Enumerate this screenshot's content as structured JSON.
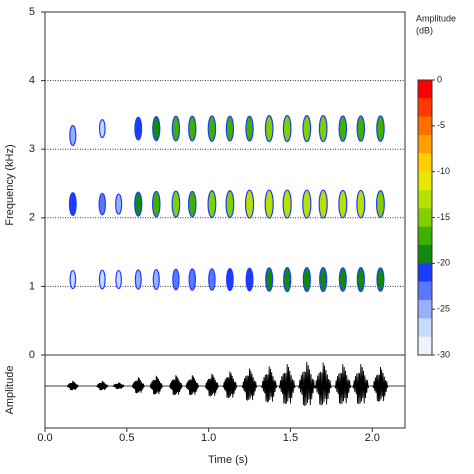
{
  "chart_data": [
    {
      "type": "spectrogram",
      "ylabel": "Frequency (kHz)",
      "xlabel": "Time (s)",
      "xlim": [
        0,
        2.2
      ],
      "xticks": [
        {
          "value": 0,
          "label": "0.0"
        },
        {
          "value": 0.5,
          "label": "0.5"
        },
        {
          "value": 1,
          "label": "1.0"
        },
        {
          "value": 1.5,
          "label": "1.5"
        },
        {
          "value": 2,
          "label": "2.0"
        }
      ],
      "ylim": [
        0,
        5
      ],
      "yticks": [
        1,
        2,
        3,
        4,
        5
      ],
      "grid": true,
      "x": [
        0.17,
        0.35,
        0.45,
        0.57,
        0.68,
        0.8,
        0.9,
        1.02,
        1.13,
        1.25,
        1.37,
        1.48,
        1.6,
        1.7,
        1.82,
        1.93,
        2.05
      ],
      "series": [
        {
          "values": [
            1.1,
            1.1,
            1.1,
            1.1,
            1.1,
            1.1,
            1.1,
            1.1,
            1.1,
            1.1,
            1.1,
            1.1,
            1.1,
            1.1,
            1.1,
            1.1,
            1.1
          ],
          "levels": [
            -27,
            -26,
            -27,
            -25,
            -24,
            -23,
            -22,
            -22,
            -21,
            -20,
            -19,
            -18,
            -18,
            -18,
            -19,
            -18,
            -19
          ]
        },
        {
          "values": [
            2.2,
            2.2,
            2.2,
            2.2,
            2.2,
            2.2,
            2.2,
            2.2,
            2.2,
            2.2,
            2.2,
            2.2,
            2.2,
            2.2,
            2.2,
            2.2,
            2.2
          ],
          "levels": [
            -20,
            -22,
            -24,
            -18,
            -16,
            -15,
            -16,
            -14,
            -14,
            -12,
            -12,
            -12,
            -12,
            -12,
            -13,
            -13,
            -14
          ]
        },
        {
          "values": [
            3.2,
            3.3,
            null,
            3.3,
            3.3,
            3.3,
            3.3,
            3.3,
            3.3,
            3.3,
            3.3,
            3.3,
            3.3,
            3.3,
            3.3,
            3.3,
            3.3
          ],
          "levels": [
            -24,
            -27,
            null,
            -20,
            -18,
            -17,
            -17,
            -16,
            -17,
            -17,
            -15,
            -15,
            -15,
            -15,
            -16,
            -16,
            -16
          ]
        }
      ],
      "colorbar": {
        "title": [
          "Amplitude",
          "(dB)"
        ],
        "lim": [
          -30,
          0
        ],
        "ticks": [
          0,
          -5,
          -10,
          -15,
          -20,
          -25,
          -30
        ],
        "colors": [
          "#ff0000",
          "#ff3a00",
          "#ff7000",
          "#ffa000",
          "#ffd000",
          "#e8e800",
          "#b8e000",
          "#80d000",
          "#40b000",
          "#108a10",
          "#1e3cff",
          "#5a78ff",
          "#96b0ff",
          "#c8daff",
          "#eef4ff"
        ]
      }
    },
    {
      "type": "waveform",
      "ylabel": "Amplitude",
      "ylim": [
        -1,
        0
      ],
      "yticks": [
        0
      ],
      "x": [
        0.17,
        0.35,
        0.45,
        0.57,
        0.68,
        0.8,
        0.9,
        1.02,
        1.13,
        1.25,
        1.37,
        1.48,
        1.6,
        1.7,
        1.82,
        1.93,
        2.05
      ],
      "values": [
        0.07,
        0.07,
        0.05,
        0.12,
        0.14,
        0.15,
        0.15,
        0.17,
        0.2,
        0.24,
        0.27,
        0.3,
        0.33,
        0.32,
        0.3,
        0.3,
        0.26
      ]
    }
  ]
}
